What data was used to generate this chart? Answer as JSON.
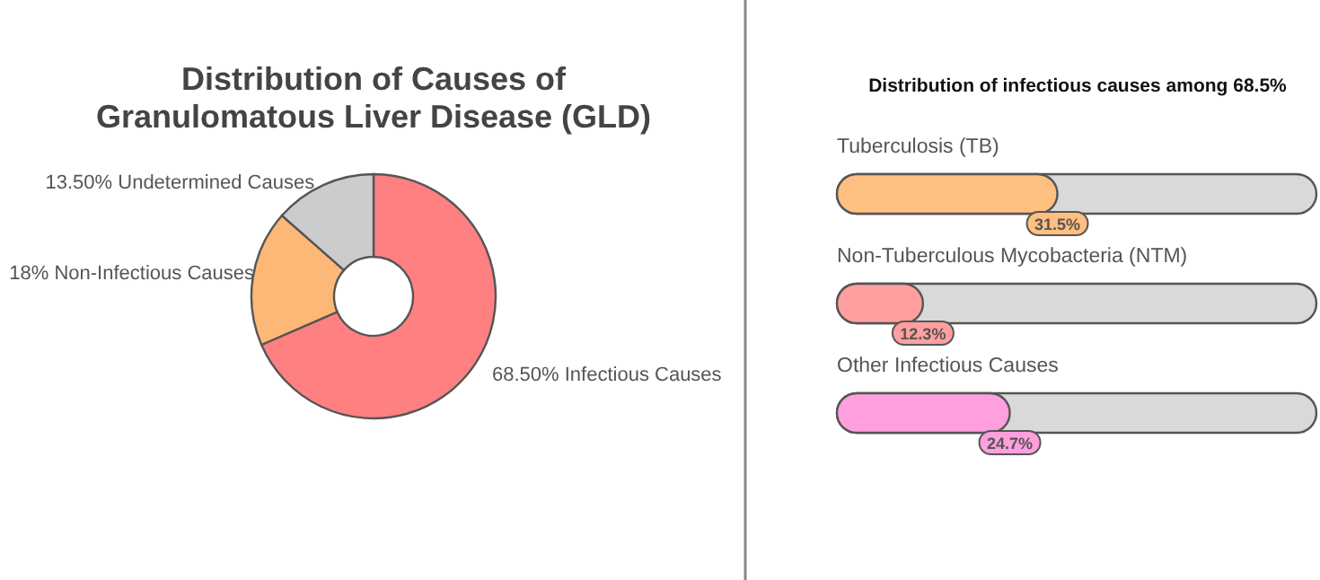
{
  "chart_data": [
    {
      "type": "donut",
      "title": "Distribution of Causes of Granulomatous Liver Disease (GLD)",
      "categories": [
        "Infectious Causes",
        "Non-Infectious Causes",
        "Undetermined Causes"
      ],
      "values": [
        68.5,
        18,
        13.5
      ],
      "value_labels": [
        "68.50%",
        "18%",
        "13.50%"
      ],
      "colors": [
        "#ff8080",
        "#fdb877",
        "#cccccc"
      ]
    },
    {
      "type": "bar",
      "orientation": "horizontal",
      "title": "Distribution of infectious causes among 68.5%",
      "categories": [
        "Tuberculosis (TB)",
        "Non-Tuberculous Mycobacteria (NTM)",
        "Other Infectious Causes"
      ],
      "values": [
        31.5,
        12.3,
        24.7
      ],
      "colors": [
        "#ffbf80",
        "#ff9f9f",
        "#ff9fdd"
      ],
      "value_labels": [
        "31.5%",
        "12.3%",
        "24.7%"
      ]
    }
  ]
}
